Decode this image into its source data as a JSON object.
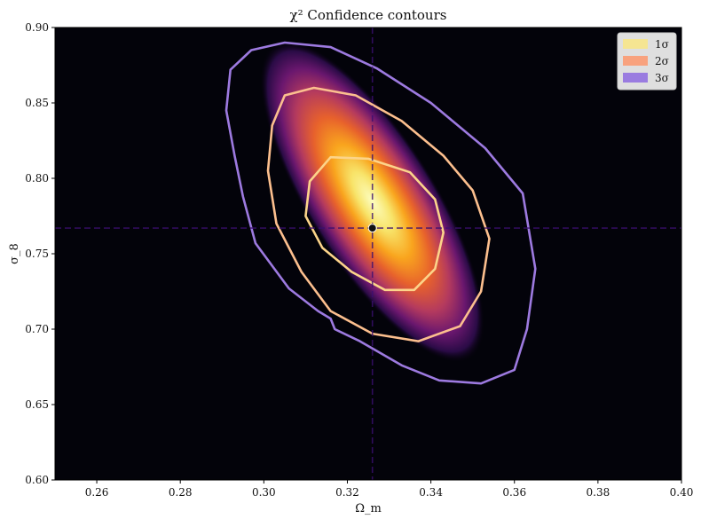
{
  "chart_data": {
    "type": "heatmap",
    "title": "χ² Confidence contours",
    "xlabel": "Ω_m",
    "ylabel": "σ_8",
    "xlim": [
      0.25,
      0.4
    ],
    "ylim": [
      0.6,
      0.9
    ],
    "xticks": [
      "0.26",
      "0.28",
      "0.30",
      "0.32",
      "0.34",
      "0.36",
      "0.38",
      "0.40"
    ],
    "yticks": [
      "0.60",
      "0.65",
      "0.70",
      "0.75",
      "0.80",
      "0.85",
      "0.90"
    ],
    "colormap": "inferno",
    "grid": false,
    "legend_position": "top-right",
    "best_fit": {
      "x": 0.326,
      "y": 0.767
    },
    "reference_lines": {
      "x": 0.326,
      "y": 0.767,
      "style": "dashed",
      "color": "#3b0f70"
    },
    "contours": [
      {
        "name": "1σ",
        "color": "#f7e48a",
        "line_color": "#fcd48a",
        "points": [
          [
            0.325,
            0.813
          ],
          [
            0.335,
            0.804
          ],
          [
            0.341,
            0.786
          ],
          [
            0.343,
            0.764
          ],
          [
            0.341,
            0.74
          ],
          [
            0.336,
            0.726
          ],
          [
            0.329,
            0.726
          ],
          [
            0.321,
            0.738
          ],
          [
            0.314,
            0.754
          ],
          [
            0.31,
            0.775
          ],
          [
            0.311,
            0.798
          ],
          [
            0.316,
            0.814
          ]
        ]
      },
      {
        "name": "2σ",
        "color": "#f9a27c",
        "line_color": "#fcbf8e",
        "points": [
          [
            0.312,
            0.86
          ],
          [
            0.322,
            0.855
          ],
          [
            0.333,
            0.838
          ],
          [
            0.343,
            0.815
          ],
          [
            0.35,
            0.792
          ],
          [
            0.354,
            0.76
          ],
          [
            0.352,
            0.725
          ],
          [
            0.347,
            0.702
          ],
          [
            0.337,
            0.692
          ],
          [
            0.326,
            0.697
          ],
          [
            0.316,
            0.712
          ],
          [
            0.309,
            0.738
          ],
          [
            0.303,
            0.77
          ],
          [
            0.301,
            0.805
          ],
          [
            0.302,
            0.835
          ],
          [
            0.305,
            0.855
          ]
        ]
      },
      {
        "name": "3σ",
        "color": "#9b7be0",
        "line_color": "#9d7ae0",
        "points": [
          [
            0.305,
            0.89
          ],
          [
            0.316,
            0.887
          ],
          [
            0.327,
            0.873
          ],
          [
            0.34,
            0.85
          ],
          [
            0.353,
            0.82
          ],
          [
            0.362,
            0.79
          ],
          [
            0.365,
            0.74
          ],
          [
            0.363,
            0.7
          ],
          [
            0.36,
            0.673
          ],
          [
            0.352,
            0.664
          ],
          [
            0.342,
            0.666
          ],
          [
            0.333,
            0.676
          ],
          [
            0.323,
            0.692
          ],
          [
            0.317,
            0.7
          ],
          [
            0.316,
            0.707
          ],
          [
            0.313,
            0.712
          ],
          [
            0.306,
            0.727
          ],
          [
            0.298,
            0.757
          ],
          [
            0.295,
            0.788
          ],
          [
            0.293,
            0.815
          ],
          [
            0.291,
            0.845
          ],
          [
            0.292,
            0.872
          ],
          [
            0.297,
            0.885
          ]
        ]
      }
    ],
    "legend": [
      {
        "label": "1σ",
        "color": "#f5e592"
      },
      {
        "label": "2σ",
        "color": "#f8a27e"
      },
      {
        "label": "3σ",
        "color": "#9a7ce0"
      }
    ]
  }
}
